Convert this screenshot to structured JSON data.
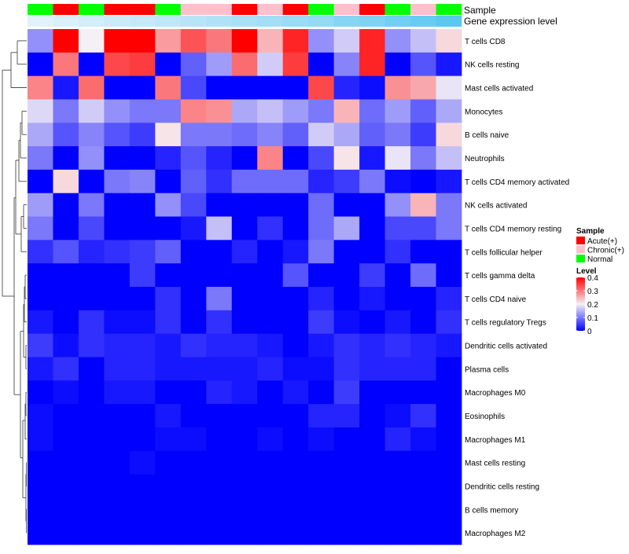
{
  "chart_data": {
    "type": "heatmap",
    "annotation_rows": [
      {
        "label": "Sample",
        "key": "sample"
      },
      {
        "label": "Gene expression level",
        "key": "expression"
      }
    ],
    "samples": [
      {
        "group": "Normal",
        "expression": 0.05
      },
      {
        "group": "Acute(+)",
        "expression": 0.1
      },
      {
        "group": "Normal",
        "expression": 0.15
      },
      {
        "group": "Acute(+)",
        "expression": 0.2
      },
      {
        "group": "Acute(+)",
        "expression": 0.25
      },
      {
        "group": "Normal",
        "expression": 0.3
      },
      {
        "group": "Chronic(+)",
        "expression": 0.35
      },
      {
        "group": "Chronic(+)",
        "expression": 0.4
      },
      {
        "group": "Acute(+)",
        "expression": 0.45
      },
      {
        "group": "Chronic(+)",
        "expression": 0.5
      },
      {
        "group": "Acute(+)",
        "expression": 0.55
      },
      {
        "group": "Normal",
        "expression": 0.6
      },
      {
        "group": "Chronic(+)",
        "expression": 0.7
      },
      {
        "group": "Acute(+)",
        "expression": 0.75
      },
      {
        "group": "Normal",
        "expression": 0.85
      },
      {
        "group": "Chronic(+)",
        "expression": 0.92
      },
      {
        "group": "Normal",
        "expression": 1.0
      }
    ],
    "rows": [
      {
        "label": "T cells CD8",
        "values": [
          0.12,
          0.4,
          0.2,
          0.4,
          0.4,
          0.27,
          0.33,
          0.3,
          0.4,
          0.25,
          0.37,
          0.12,
          0.17,
          0.37,
          0.12,
          0.16,
          0.22
        ]
      },
      {
        "label": "NK cells resting",
        "values": [
          0.0,
          0.3,
          0.0,
          0.34,
          0.35,
          0.0,
          0.08,
          0.13,
          0.31,
          0.17,
          0.35,
          0.0,
          0.11,
          0.37,
          0.0,
          0.07,
          0.02
        ]
      },
      {
        "label": "Mast cells activated",
        "values": [
          0.29,
          0.02,
          0.31,
          0.0,
          0.0,
          0.3,
          0.06,
          0.0,
          0.0,
          0.0,
          0.0,
          0.34,
          0.03,
          0.01,
          0.28,
          0.26,
          0.19
        ]
      },
      {
        "label": "Monocytes",
        "values": [
          0.18,
          0.1,
          0.17,
          0.12,
          0.1,
          0.1,
          0.29,
          0.28,
          0.14,
          0.16,
          0.13,
          0.1,
          0.25,
          0.09,
          0.13,
          0.08,
          0.14
        ]
      },
      {
        "label": "B cells naive",
        "values": [
          0.14,
          0.07,
          0.11,
          0.07,
          0.05,
          0.21,
          0.1,
          0.1,
          0.09,
          0.11,
          0.08,
          0.17,
          0.14,
          0.08,
          0.1,
          0.05,
          0.22
        ]
      },
      {
        "label": "Neutrophils",
        "values": [
          0.1,
          0.0,
          0.12,
          0.0,
          0.0,
          0.03,
          0.07,
          0.03,
          0.0,
          0.29,
          0.0,
          0.06,
          0.21,
          0.02,
          0.19,
          0.1,
          0.16
        ]
      },
      {
        "label": "T cells CD4 memory activated",
        "values": [
          0.0,
          0.22,
          0.0,
          0.1,
          0.11,
          0.0,
          0.08,
          0.04,
          0.09,
          0.09,
          0.09,
          0.03,
          0.05,
          0.1,
          0.01,
          0.0,
          0.02
        ]
      },
      {
        "label": "NK cells activated",
        "values": [
          0.13,
          0.0,
          0.1,
          0.0,
          0.0,
          0.12,
          0.06,
          0.0,
          0.0,
          0.0,
          0.0,
          0.09,
          0.0,
          0.0,
          0.12,
          0.25,
          0.1
        ]
      },
      {
        "label": "T cells CD4 memory resting",
        "values": [
          0.1,
          0.0,
          0.06,
          0.0,
          0.0,
          0.0,
          0.02,
          0.16,
          0.0,
          0.04,
          0.0,
          0.09,
          0.14,
          0.0,
          0.06,
          0.06,
          0.1
        ]
      },
      {
        "label": "T cells follicular helper",
        "values": [
          0.04,
          0.07,
          0.03,
          0.04,
          0.05,
          0.08,
          0.0,
          0.0,
          0.03,
          0.0,
          0.02,
          0.1,
          0.0,
          0.0,
          0.04,
          0.0,
          0.0
        ]
      },
      {
        "label": "T cells gamma delta",
        "values": [
          0.0,
          0.0,
          0.0,
          0.0,
          0.05,
          0.0,
          0.0,
          0.0,
          0.0,
          0.0,
          0.07,
          0.0,
          0.0,
          0.05,
          0.0,
          0.09,
          0.0
        ]
      },
      {
        "label": "T cells CD4 naive",
        "values": [
          0.0,
          0.0,
          0.0,
          0.0,
          0.0,
          0.04,
          0.0,
          0.1,
          0.0,
          0.0,
          0.0,
          0.03,
          0.0,
          0.02,
          0.0,
          0.0,
          0.03
        ]
      },
      {
        "label": "T cells regulatory  Tregs",
        "values": [
          0.02,
          0.0,
          0.04,
          0.01,
          0.01,
          0.04,
          0.0,
          0.04,
          0.0,
          0.0,
          0.0,
          0.05,
          0.01,
          0.0,
          0.02,
          0.0,
          0.04
        ]
      },
      {
        "label": "Dendritic cells activated",
        "values": [
          0.05,
          0.01,
          0.04,
          0.03,
          0.03,
          0.02,
          0.04,
          0.03,
          0.03,
          0.02,
          0.0,
          0.02,
          0.04,
          0.03,
          0.04,
          0.03,
          0.02
        ]
      },
      {
        "label": "Plasma cells",
        "values": [
          0.02,
          0.04,
          0.0,
          0.03,
          0.03,
          0.02,
          0.02,
          0.02,
          0.02,
          0.03,
          0.01,
          0.01,
          0.04,
          0.03,
          0.03,
          0.03,
          0.0
        ]
      },
      {
        "label": "Macrophages M0",
        "values": [
          0.0,
          0.01,
          0.0,
          0.02,
          0.02,
          0.0,
          0.0,
          0.03,
          0.02,
          0.0,
          0.02,
          0.0,
          0.05,
          0.0,
          0.0,
          0.0,
          0.0
        ]
      },
      {
        "label": "Eosinophils",
        "values": [
          0.01,
          0.0,
          0.0,
          0.0,
          0.0,
          0.02,
          0.0,
          0.0,
          0.0,
          0.0,
          0.0,
          0.03,
          0.03,
          0.0,
          0.01,
          0.04,
          0.0
        ]
      },
      {
        "label": "Macrophages M1",
        "values": [
          0.01,
          0.0,
          0.0,
          0.0,
          0.0,
          0.01,
          0.01,
          0.0,
          0.0,
          0.01,
          0.0,
          0.01,
          0.0,
          0.0,
          0.03,
          0.01,
          0.0
        ]
      },
      {
        "label": "Mast cells resting",
        "values": [
          0.0,
          0.0,
          0.0,
          0.0,
          0.01,
          0.0,
          0.0,
          0.0,
          0.0,
          0.0,
          0.0,
          0.0,
          0.0,
          0.0,
          0.0,
          0.0,
          0.0
        ]
      },
      {
        "label": "Dendritic cells resting",
        "values": [
          0.0,
          0.0,
          0.0,
          0.0,
          0.0,
          0.0,
          0.0,
          0.0,
          0.0,
          0.0,
          0.0,
          0.0,
          0.0,
          0.0,
          0.0,
          0.0,
          0.0
        ]
      },
      {
        "label": "B cells memory",
        "values": [
          0.0,
          0.0,
          0.0,
          0.0,
          0.0,
          0.0,
          0.0,
          0.0,
          0.0,
          0.0,
          0.0,
          0.0,
          0.0,
          0.0,
          0.0,
          0.0,
          0.0
        ]
      },
      {
        "label": "Macrophages M2",
        "values": [
          0.0,
          0.0,
          0.0,
          0.0,
          0.0,
          0.0,
          0.0,
          0.0,
          0.0,
          0.0,
          0.0,
          0.0,
          0.0,
          0.0,
          0.0,
          0.0,
          0.0
        ]
      }
    ],
    "legend_sample": {
      "title": "Sample",
      "entries": [
        {
          "label": "Acute(+)",
          "color": "#ff0000"
        },
        {
          "label": "Chronic(+)",
          "color": "#ffc0cb"
        },
        {
          "label": "Normal",
          "color": "#00ff00"
        }
      ]
    },
    "legend_level": {
      "title": "Level",
      "ticks": [
        "0.4",
        "0.3",
        "0.2",
        "0.1",
        "0"
      ],
      "tick_values": [
        0.4,
        0.3,
        0.2,
        0.1,
        0.0
      ],
      "range": [
        0,
        0.4
      ]
    },
    "colors": {
      "low": "#0000ff",
      "mid": "#f5f0f5",
      "high": "#ff0000",
      "expression_low": "#e8f4fb",
      "expression_high": "#5bc8f0",
      "dendrogram": "#333333"
    }
  }
}
